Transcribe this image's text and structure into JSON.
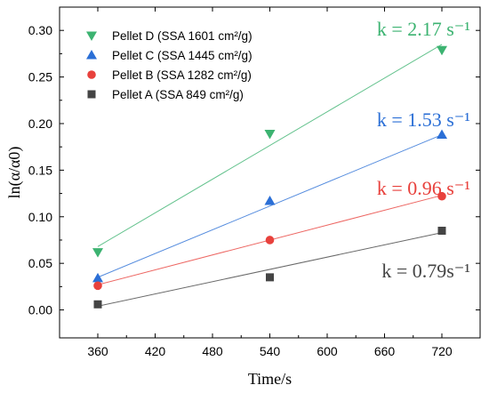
{
  "chart_data": {
    "type": "scatter",
    "xlabel": "Time/s",
    "ylabel": "ln(α/α0)",
    "xlim": [
      320,
      760
    ],
    "ylim": [
      -0.03,
      0.325
    ],
    "x_ticks": [
      360,
      420,
      480,
      540,
      600,
      660,
      720
    ],
    "y_ticks": [
      0.0,
      0.05,
      0.1,
      0.15,
      0.2,
      0.25,
      0.3
    ],
    "grid": false,
    "legend_position": "top-left",
    "series": [
      {
        "name": "Pellet D (SSA 1601 cm²/g)",
        "marker": "triangle-down",
        "color": "#3cb371",
        "x": [
          360,
          540,
          720
        ],
        "y": [
          0.062,
          0.189,
          0.279
        ],
        "fit_x": [
          360,
          720
        ],
        "fit_y": [
          0.068,
          0.285
        ],
        "rate_label": "k = 2.17 s⁻¹"
      },
      {
        "name": "Pellet C (SSA 1445 cm²/g)",
        "marker": "triangle-up",
        "color": "#2b6fd6",
        "x": [
          360,
          540,
          720
        ],
        "y": [
          0.034,
          0.117,
          0.188
        ],
        "fit_x": [
          360,
          720
        ],
        "fit_y": [
          0.035,
          0.188
        ],
        "rate_label": "k = 1.53 s⁻¹"
      },
      {
        "name": "Pellet B (SSA 1282 cm²/g)",
        "marker": "circle",
        "color": "#e8413c",
        "x": [
          360,
          540,
          720
        ],
        "y": [
          0.026,
          0.075,
          0.122
        ],
        "fit_x": [
          360,
          720
        ],
        "fit_y": [
          0.027,
          0.123
        ],
        "rate_label": "k = 0.96 s⁻¹"
      },
      {
        "name": "Pellet A (SSA 849 cm²/g)",
        "marker": "square",
        "color": "#444444",
        "x": [
          360,
          540,
          720
        ],
        "y": [
          0.006,
          0.035,
          0.085
        ],
        "fit_x": [
          360,
          720
        ],
        "fit_y": [
          0.004,
          0.083
        ],
        "rate_label": "k = 0.79s⁻¹"
      }
    ]
  }
}
